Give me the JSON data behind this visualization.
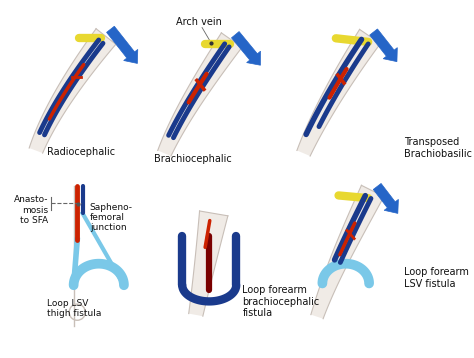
{
  "background_color": "#ffffff",
  "labels": {
    "arch_vein": "Arch vein",
    "radiocephalic": "Radiocephalic",
    "brachiocephalic": "Brachiocephalic",
    "transposed": "Transposed\nBrachiobasilic",
    "anastomosis": "Anasto-\nmosis\nto SFA",
    "sapheno": "Sapheno-\nfemoral\njunction",
    "loop_lsv_thigh": "Loop LSV\nthigh fistula",
    "loop_forearm_brachio": "Loop forearm\nbrachiocephalic\nfistula",
    "loop_forearm_lsv": "Loop forearm\nLSV fistula"
  },
  "colors": {
    "blue_vessel": "#1a3a8c",
    "blue_arrow": "#2565c7",
    "red_vessel": "#cc2200",
    "yellow_vessel": "#e8d830",
    "light_blue_loop": "#7ac8e8",
    "dark_red": "#7a0000",
    "skin_outline": "#c8bfb8",
    "arm_fill": "#f0ebe6",
    "text_color": "#111111",
    "dashed_line": "#666666"
  },
  "figsize": [
    4.74,
    3.58
  ],
  "dpi": 100
}
